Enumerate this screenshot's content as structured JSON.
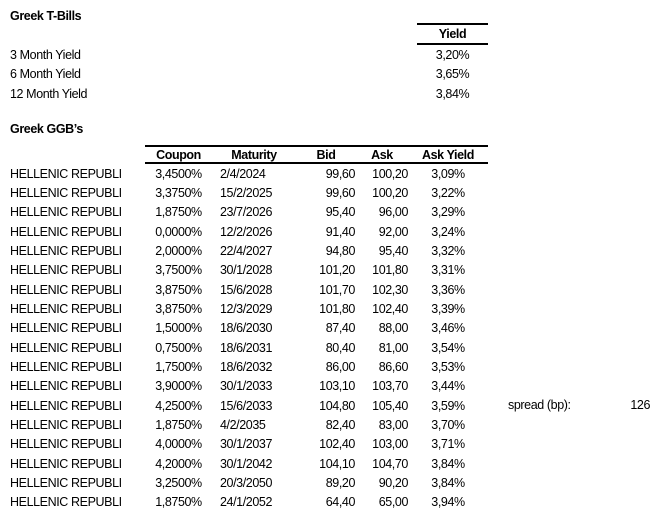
{
  "colors": {
    "text": "#000000",
    "background": "#ffffff",
    "border": "#000000"
  },
  "tbills": {
    "title": "Greek T-Bills",
    "header": "Yield",
    "rows": [
      {
        "label": "3 Month Yield",
        "value": "3,20%"
      },
      {
        "label": "6 Month Yield",
        "value": "3,65%"
      },
      {
        "label": "12 Month Yield",
        "value": "3,84%"
      }
    ]
  },
  "ggbs": {
    "title": "Greek GGB’s",
    "issuer": "HELLENIC REPUBLI",
    "columns": [
      "Coupon",
      "Maturity",
      "Bid",
      "Ask",
      "Ask Yield"
    ],
    "rows": [
      {
        "coupon": "3,4500%",
        "maturity": "2/4/2024",
        "bid": "99,60",
        "ask": "100,20",
        "ask_yield": "3,09%"
      },
      {
        "coupon": "3,3750%",
        "maturity": "15/2/2025",
        "bid": "99,60",
        "ask": "100,20",
        "ask_yield": "3,22%"
      },
      {
        "coupon": "1,8750%",
        "maturity": "23/7/2026",
        "bid": "95,40",
        "ask": "96,00",
        "ask_yield": "3,29%"
      },
      {
        "coupon": "0,0000%",
        "maturity": "12/2/2026",
        "bid": "91,40",
        "ask": "92,00",
        "ask_yield": "3,24%"
      },
      {
        "coupon": "2,0000%",
        "maturity": "22/4/2027",
        "bid": "94,80",
        "ask": "95,40",
        "ask_yield": "3,32%"
      },
      {
        "coupon": "3,7500%",
        "maturity": "30/1/2028",
        "bid": "101,20",
        "ask": "101,80",
        "ask_yield": "3,31%"
      },
      {
        "coupon": "3,8750%",
        "maturity": "15/6/2028",
        "bid": "101,70",
        "ask": "102,30",
        "ask_yield": "3,36%"
      },
      {
        "coupon": "3,8750%",
        "maturity": "12/3/2029",
        "bid": "101,80",
        "ask": "102,40",
        "ask_yield": "3,39%"
      },
      {
        "coupon": "1,5000%",
        "maturity": "18/6/2030",
        "bid": "87,40",
        "ask": "88,00",
        "ask_yield": "3,46%"
      },
      {
        "coupon": "0,7500%",
        "maturity": "18/6/2031",
        "bid": "80,40",
        "ask": "81,00",
        "ask_yield": "3,54%"
      },
      {
        "coupon": "1,7500%",
        "maturity": "18/6/2032",
        "bid": "86,00",
        "ask": "86,60",
        "ask_yield": "3,53%"
      },
      {
        "coupon": "3,9000%",
        "maturity": "30/1/2033",
        "bid": "103,10",
        "ask": "103,70",
        "ask_yield": "3,44%"
      },
      {
        "coupon": "4,2500%",
        "maturity": "15/6/2033",
        "bid": "104,80",
        "ask": "105,40",
        "ask_yield": "3,59%"
      },
      {
        "coupon": "1,8750%",
        "maturity": "4/2/2035",
        "bid": "82,40",
        "ask": "83,00",
        "ask_yield": "3,70%"
      },
      {
        "coupon": "4,0000%",
        "maturity": "30/1/2037",
        "bid": "102,40",
        "ask": "103,00",
        "ask_yield": "3,71%"
      },
      {
        "coupon": "4,2000%",
        "maturity": "30/1/2042",
        "bid": "104,10",
        "ask": "104,70",
        "ask_yield": "3,84%"
      },
      {
        "coupon": "3,2500%",
        "maturity": "20/3/2050",
        "bid": "89,20",
        "ask": "90,20",
        "ask_yield": "3,84%"
      },
      {
        "coupon": "1,8750%",
        "maturity": "24/1/2052",
        "bid": "64,40",
        "ask": "65,00",
        "ask_yield": "3,94%"
      }
    ]
  },
  "spread": {
    "label": "spread (bp):",
    "value": "126"
  }
}
